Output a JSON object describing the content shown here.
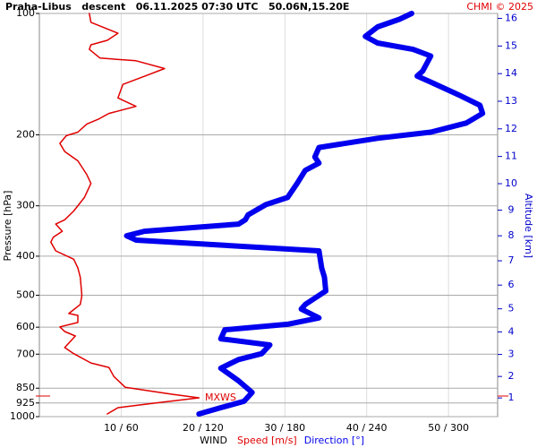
{
  "chart_data": {
    "type": "profile",
    "title": "Praha-Libus   descent   06.11.2025 07:30 UTC   50.06N,15.20E",
    "credit": "CHMI © 2025",
    "y_label": "Pressure [hPa]",
    "y2_label": "Altitude [km]",
    "x_label": "WIND",
    "log_scale": true,
    "grid": true,
    "ylim": [
      1000,
      100
    ],
    "yticks": [
      100,
      200,
      300,
      400,
      500,
      600,
      700,
      850,
      925,
      1000
    ],
    "y2ticks": [
      1,
      2,
      3,
      4,
      5,
      6,
      7,
      8,
      9,
      10,
      11,
      12,
      13,
      14,
      15,
      16
    ],
    "y2_color": "#0000cc",
    "xlim": [
      0,
      56
    ],
    "x2lim": [
      0,
      336
    ],
    "xticks": [
      {
        "value": 10,
        "label": "10 / 60"
      },
      {
        "value": 20,
        "label": "20 / 120"
      },
      {
        "value": 30,
        "label": "30 / 180"
      },
      {
        "value": 40,
        "label": "40 / 240"
      },
      {
        "value": 50,
        "label": "50 / 300"
      }
    ],
    "series": [
      {
        "name": "Speed [m/s]",
        "color": "#e00000",
        "pressure": [
          100,
          105.2,
          112,
          116.6,
          119.6,
          122.8,
          129,
          131,
          137,
          143,
          150,
          162,
          170,
          177,
          183,
          188,
          197,
          201,
          210,
          220,
          232,
          251,
          264,
          286,
          309,
          325,
          333,
          347,
          359,
          369,
          388,
          407,
          428,
          451,
          501,
          527,
          555,
          561,
          584,
          599,
          615,
          631,
          674,
          698,
          736,
          755,
          795,
          846,
          880,
          898,
          926,
          950,
          985
        ],
        "values": [
          6.1,
          6.3,
          9.6,
          8.3,
          6.3,
          6.1,
          7.4,
          11.8,
          15.3,
          12.9,
          10.2,
          9.6,
          11.8,
          8.5,
          7.2,
          5.8,
          4.7,
          3.3,
          2.5,
          3.1,
          4.7,
          5.8,
          6.3,
          5.5,
          4.2,
          3.1,
          2.0,
          2.8,
          1.7,
          1.4,
          2.0,
          4.2,
          4.7,
          5.0,
          5.2,
          5.0,
          3.6,
          4.7,
          4.7,
          2.5,
          3.1,
          4.4,
          3.1,
          4.2,
          6.3,
          8.5,
          9.1,
          10.5,
          16.2,
          19.5,
          14.0,
          9.6,
          8.3
        ]
      },
      {
        "name": "Direction [°]",
        "color": "#0000ee",
        "axis": "x2",
        "pressure": [
          100,
          103.4,
          108,
          114,
          118.4,
          122.8,
          127.5,
          139,
          143,
          148,
          159,
          169,
          177,
          187,
          197,
          204,
          215,
          227,
          235,
          245,
          264,
          286,
          298,
          316,
          325,
          333,
          347,
          356,
          365,
          375,
          388,
          428,
          451,
          488,
          527,
          541,
          569,
          590,
          609,
          641,
          664,
          698,
          722,
          758,
          815,
          871,
          916,
          950,
          985
        ],
        "values": [
          273,
          264,
          248,
          239,
          248,
          274,
          287,
          281,
          277,
          287,
          307,
          323,
          325,
          313,
          287,
          248,
          205,
          202,
          205,
          195,
          189,
          182,
          166,
          153,
          151,
          146,
          77,
          64,
          71,
          130,
          205,
          207,
          209,
          210,
          195,
          192,
          205,
          182,
          136,
          133,
          169,
          163,
          146,
          133,
          146,
          156,
          150,
          133,
          117
        ]
      }
    ],
    "annotation": {
      "label": "MXWS",
      "pressure": 889
    }
  }
}
